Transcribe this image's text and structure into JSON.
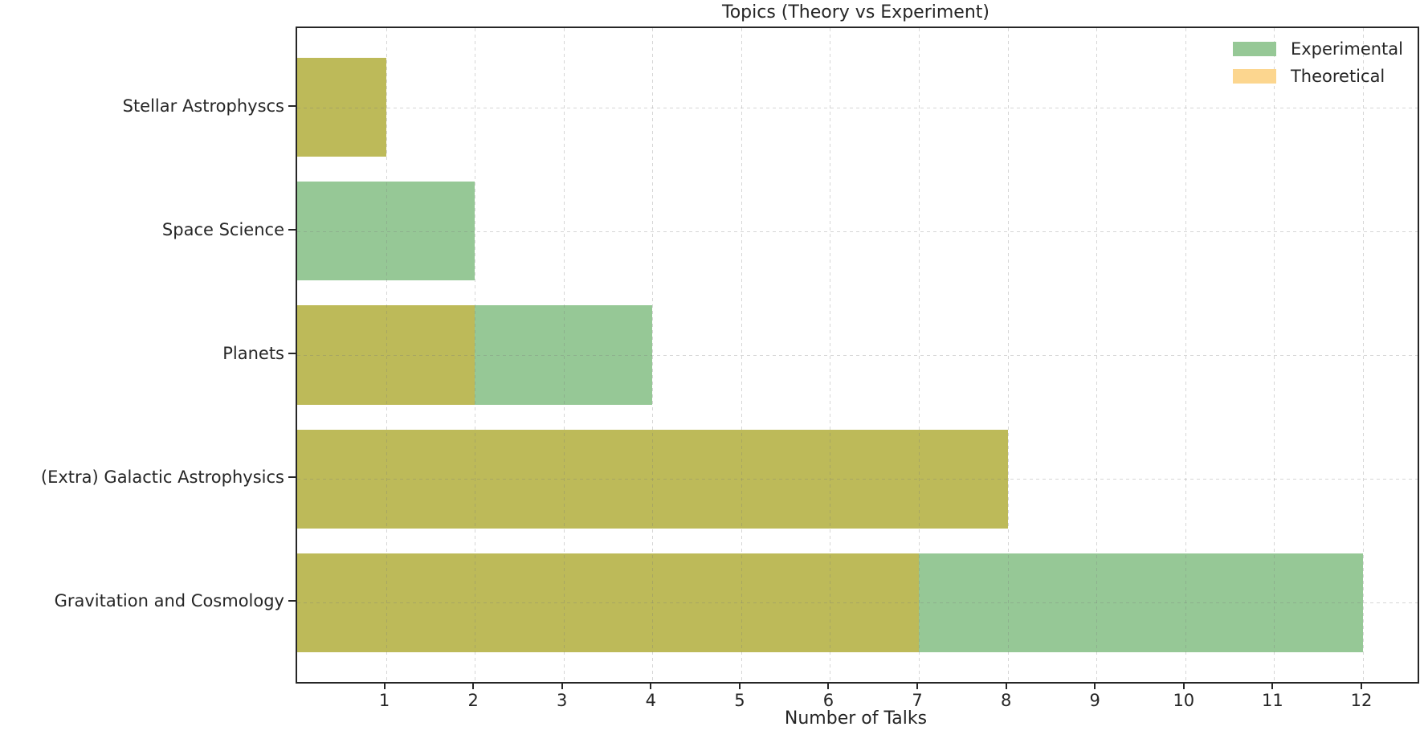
{
  "chart_data": {
    "type": "bar",
    "orientation": "horizontal",
    "title": "Topics (Theory vs Experiment)",
    "xlabel": "Number of Talks",
    "ylabel": "",
    "categories": [
      "Stellar Astrophyscs",
      "Space Science",
      "Planets",
      "(Extra) Galactic Astrophysics",
      "Gravitation and Cosmology"
    ],
    "series": [
      {
        "name": "Experimental",
        "color": "#96c896",
        "values": [
          1,
          2,
          4,
          8,
          12
        ]
      },
      {
        "name": "Theoretical",
        "color": "#fcd68f",
        "values": [
          1,
          0,
          2,
          8,
          7
        ]
      }
    ],
    "overlap_color": "#bdba59",
    "note": "Bars overlap with transparency; where Experimental and Theoretical overlap the bar renders olive",
    "xticks": [
      1,
      2,
      3,
      4,
      5,
      6,
      7,
      8,
      9,
      10,
      11,
      12
    ],
    "xlim": [
      0,
      12.615
    ],
    "y_units_span": 5.28,
    "y_top_unit": 4.64,
    "bar_height_units": 0.8,
    "grid": {
      "on": true,
      "style": "dashed",
      "color": "#d9d9d9"
    },
    "legend": {
      "position": "upper right"
    },
    "axis_color": "#262626",
    "text_color": "#262626"
  }
}
